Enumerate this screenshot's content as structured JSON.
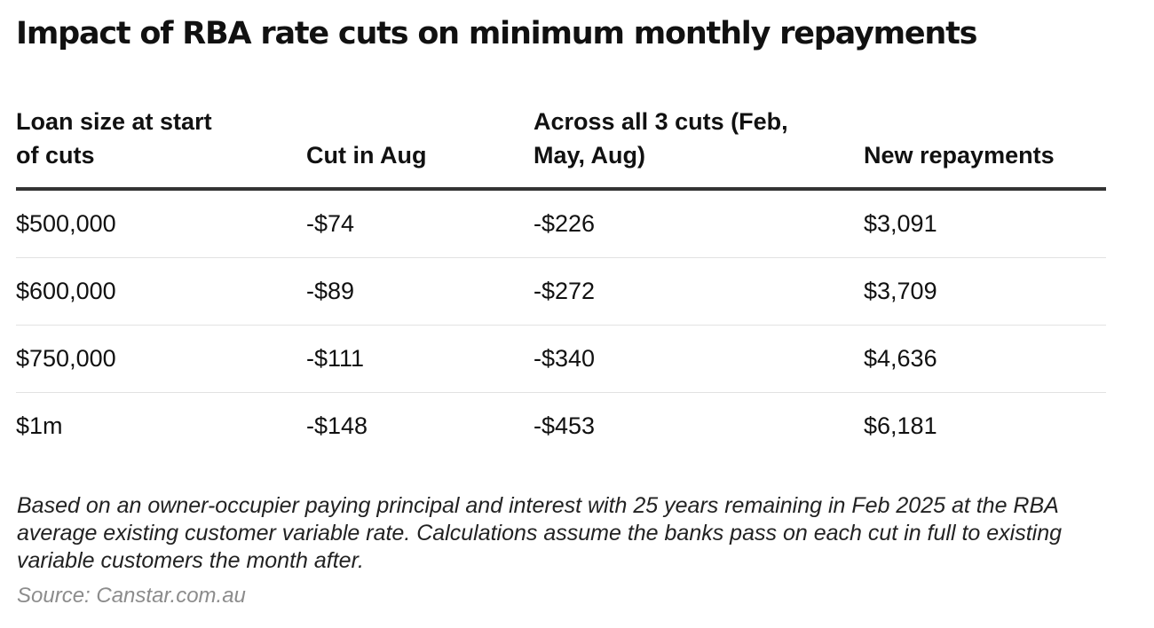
{
  "chart_data": {
    "type": "table",
    "title": "Impact of RBA rate cuts on minimum monthly repayments",
    "columns": [
      [
        "Loan size at start",
        "of cuts"
      ],
      [
        "Cut in Aug"
      ],
      [
        "Across all 3 cuts (Feb,",
        "May, Aug)"
      ],
      [
        "New repayments"
      ]
    ],
    "rows": [
      [
        "$500,000",
        "-$74",
        "-$226",
        "$3,091"
      ],
      [
        "$600,000",
        "-$89",
        "-$272",
        "$3,709"
      ],
      [
        "$750,000",
        "-$111",
        "-$340",
        "$4,636"
      ],
      [
        "$1m",
        "-$148",
        "-$453",
        "$6,181"
      ]
    ],
    "note": "Based on an owner-occupier paying principal and interest with 25 years remaining in Feb 2025 at the RBA average existing customer variable rate. Calculations assume the banks pass on each cut in full to existing variable customers the month after.",
    "source": "Source: Canstar.com.au"
  }
}
